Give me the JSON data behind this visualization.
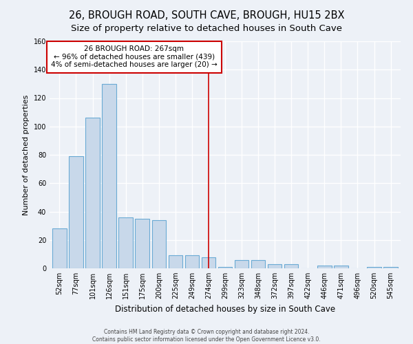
{
  "title": "26, BROUGH ROAD, SOUTH CAVE, BROUGH, HU15 2BX",
  "subtitle": "Size of property relative to detached houses in South Cave",
  "bar_labels": [
    "52sqm",
    "77sqm",
    "101sqm",
    "126sqm",
    "151sqm",
    "175sqm",
    "200sqm",
    "225sqm",
    "249sqm",
    "274sqm",
    "299sqm",
    "323sqm",
    "348sqm",
    "372sqm",
    "397sqm",
    "422sqm",
    "446sqm",
    "471sqm",
    "496sqm",
    "520sqm",
    "545sqm"
  ],
  "bar_values": [
    28,
    79,
    106,
    130,
    36,
    35,
    34,
    9,
    9,
    8,
    1,
    6,
    6,
    3,
    3,
    0,
    2,
    2,
    0,
    1,
    1
  ],
  "bar_color": "#c8d8ea",
  "bar_edge_color": "#6aaad4",
  "ylabel": "Number of detached properties",
  "xlabel": "Distribution of detached houses by size in South Cave",
  "ylim": [
    0,
    160
  ],
  "yticks": [
    0,
    20,
    40,
    60,
    80,
    100,
    120,
    140,
    160
  ],
  "vline_x_index": 9,
  "vline_color": "#cc0000",
  "annotation_title": "26 BROUGH ROAD: 267sqm",
  "annotation_line1": "← 96% of detached houses are smaller (439)",
  "annotation_line2": "4% of semi-detached houses are larger (20) →",
  "annotation_box_color": "#ffffff",
  "annotation_border_color": "#cc0000",
  "footer_line1": "Contains HM Land Registry data © Crown copyright and database right 2024.",
  "footer_line2": "Contains public sector information licensed under the Open Government Licence v3.0.",
  "background_color": "#edf1f7",
  "grid_color": "#ffffff",
  "title_fontsize": 10.5,
  "subtitle_fontsize": 9.5
}
